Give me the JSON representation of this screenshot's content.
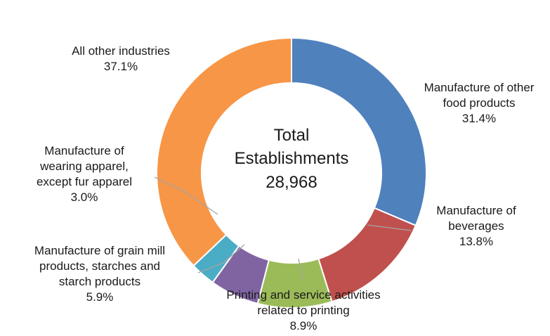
{
  "chart_data": {
    "type": "pie",
    "donut": true,
    "center_text": [
      "Total",
      "Establishments",
      "28,968"
    ],
    "slices": [
      {
        "label": [
          "Manufacture of other",
          "food products"
        ],
        "value_label": "31.4%",
        "value": 31.4,
        "color": "#4f81bd"
      },
      {
        "label": [
          "Manufacture of",
          "beverages"
        ],
        "value_label": "13.8%",
        "value": 13.8,
        "color": "#c0504d"
      },
      {
        "label": [
          "Printing and service activities",
          "related to printing"
        ],
        "value_label": "8.9%",
        "value": 8.9,
        "color": "#9bbb59"
      },
      {
        "label": [
          "Manufacture of grain mill",
          "products, starches and",
          "starch products"
        ],
        "value_label": "5.9%",
        "value": 5.9,
        "color": "#8064a2"
      },
      {
        "label": [
          "Manufacture of",
          "wearing apparel,",
          "except fur apparel"
        ],
        "value_label": "3.0%",
        "value": 3.0,
        "color": "#4bacc6"
      },
      {
        "label": [
          "All other industries"
        ],
        "value_label": "37.1%",
        "value": 37.1,
        "color": "#f79646"
      }
    ]
  }
}
